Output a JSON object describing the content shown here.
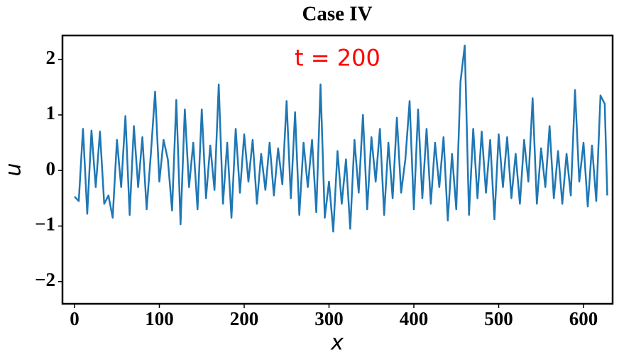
{
  "chart_data": {
    "type": "line",
    "title": "Case IV",
    "xlabel": "x",
    "ylabel": "u",
    "annotation": "t = 200",
    "annotation_color": "#ff0000",
    "annotation_xy": [
      310,
      2.0
    ],
    "x": [
      0,
      5,
      10,
      15,
      20,
      25,
      30,
      35,
      40,
      45,
      50,
      55,
      60,
      65,
      70,
      75,
      80,
      85,
      90,
      95,
      100,
      105,
      110,
      115,
      120,
      125,
      130,
      135,
      140,
      145,
      150,
      155,
      160,
      165,
      170,
      175,
      180,
      185,
      190,
      195,
      200,
      205,
      210,
      215,
      220,
      225,
      230,
      235,
      240,
      245,
      250,
      255,
      260,
      265,
      270,
      275,
      280,
      285,
      290,
      295,
      300,
      305,
      310,
      315,
      320,
      325,
      330,
      335,
      340,
      345,
      350,
      355,
      360,
      365,
      370,
      375,
      380,
      385,
      390,
      395,
      400,
      405,
      410,
      415,
      420,
      425,
      430,
      435,
      440,
      445,
      450,
      455,
      460,
      465,
      470,
      475,
      480,
      485,
      490,
      495,
      500,
      505,
      510,
      515,
      520,
      525,
      530,
      535,
      540,
      545,
      550,
      555,
      560,
      565,
      570,
      575,
      580,
      585,
      590,
      595,
      600,
      605,
      610,
      615,
      620,
      625,
      628
    ],
    "series": [
      {
        "name": "u",
        "color": "#1f77b4",
        "values": [
          -0.47,
          -0.55,
          0.75,
          -0.78,
          0.72,
          -0.3,
          0.7,
          -0.6,
          -0.45,
          -0.85,
          0.55,
          -0.3,
          0.98,
          -0.8,
          0.8,
          -0.3,
          0.6,
          -0.7,
          0.3,
          1.42,
          -0.2,
          0.55,
          0.2,
          -0.72,
          1.27,
          -0.97,
          1.1,
          -0.3,
          0.5,
          -0.7,
          1.1,
          -0.5,
          0.45,
          -0.35,
          1.55,
          -0.6,
          0.5,
          -0.85,
          0.75,
          -0.4,
          0.65,
          -0.2,
          0.55,
          -0.6,
          0.3,
          -0.35,
          0.5,
          -0.45,
          0.4,
          -0.25,
          1.25,
          -0.5,
          1.05,
          -0.8,
          0.5,
          -0.3,
          0.55,
          -0.75,
          1.55,
          -0.85,
          -0.2,
          -1.1,
          0.35,
          -0.6,
          0.2,
          -1.05,
          0.55,
          -0.4,
          1.0,
          -0.7,
          0.6,
          -0.2,
          0.75,
          -0.8,
          0.5,
          -0.5,
          0.95,
          -0.4,
          0.2,
          1.25,
          -0.7,
          1.1,
          -0.5,
          0.75,
          -0.6,
          0.5,
          -0.3,
          0.6,
          -0.9,
          0.3,
          -0.7,
          1.6,
          2.25,
          -0.8,
          0.75,
          -0.5,
          0.7,
          -0.4,
          0.55,
          -0.88,
          0.65,
          -0.3,
          0.6,
          -0.5,
          0.3,
          -0.6,
          0.55,
          -0.2,
          1.3,
          -0.6,
          0.4,
          -0.3,
          0.8,
          -0.5,
          0.35,
          -0.6,
          0.3,
          -0.45,
          1.45,
          -0.2,
          0.5,
          -0.65,
          0.45,
          -0.55,
          1.35,
          1.2,
          -0.45
        ]
      }
    ],
    "xlim": [
      -14.2,
      634.3
    ],
    "ylim": [
      -2.4,
      2.43
    ],
    "xticks": [
      0,
      100,
      200,
      300,
      400,
      500,
      600
    ],
    "yticks": [
      {
        "value": -2,
        "label": "−2"
      },
      {
        "value": -1,
        "label": "−1"
      },
      0,
      1,
      2
    ]
  }
}
